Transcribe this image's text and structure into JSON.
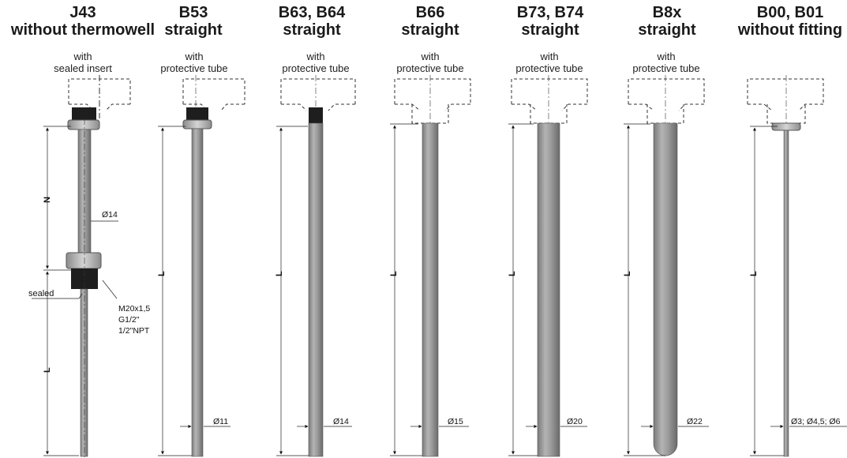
{
  "variants": [
    {
      "code": "J43",
      "type": "without thermowell",
      "sub1": "with",
      "sub2": "sealed insert",
      "dims": [
        "N",
        "L"
      ],
      "dia": "Ø14"
    },
    {
      "code": "B53",
      "type": "straight",
      "sub1": "with",
      "sub2": "protective tube",
      "dims": [
        "L"
      ],
      "dia": "Ø11"
    },
    {
      "code": "B63, B64",
      "type": "straight",
      "sub1": "with",
      "sub2": "protective tube",
      "dims": [
        "L"
      ],
      "dia": "Ø14"
    },
    {
      "code": "B66",
      "type": "straight",
      "sub1": "with",
      "sub2": "protective tube",
      "dims": [
        "L"
      ],
      "dia": "Ø15"
    },
    {
      "code": "B73, B74",
      "type": "straight",
      "sub1": "with",
      "sub2": "protective tube",
      "dims": [
        "L"
      ],
      "dia": "Ø20"
    },
    {
      "code": "B8x",
      "type": "straight",
      "sub1": "with",
      "sub2": "protective tube",
      "dims": [
        "L"
      ],
      "dia": "Ø22"
    },
    {
      "code": "B00, B01",
      "type": "without fitting",
      "sub1": "",
      "sub2": "",
      "dims": [
        "L"
      ],
      "dia": "Ø3; Ø4,5; Ø6"
    }
  ],
  "j43_callouts": {
    "sealed": "sealed",
    "thread1": "M20x1,5",
    "thread2": "G1/2\"",
    "thread3": "1/2\"NPT"
  },
  "colors": {
    "tube": "#9a9a9a",
    "tube_dark": "#6e6e6e",
    "fitting": "#1e1e1e",
    "nut": "#b8b8b8"
  }
}
